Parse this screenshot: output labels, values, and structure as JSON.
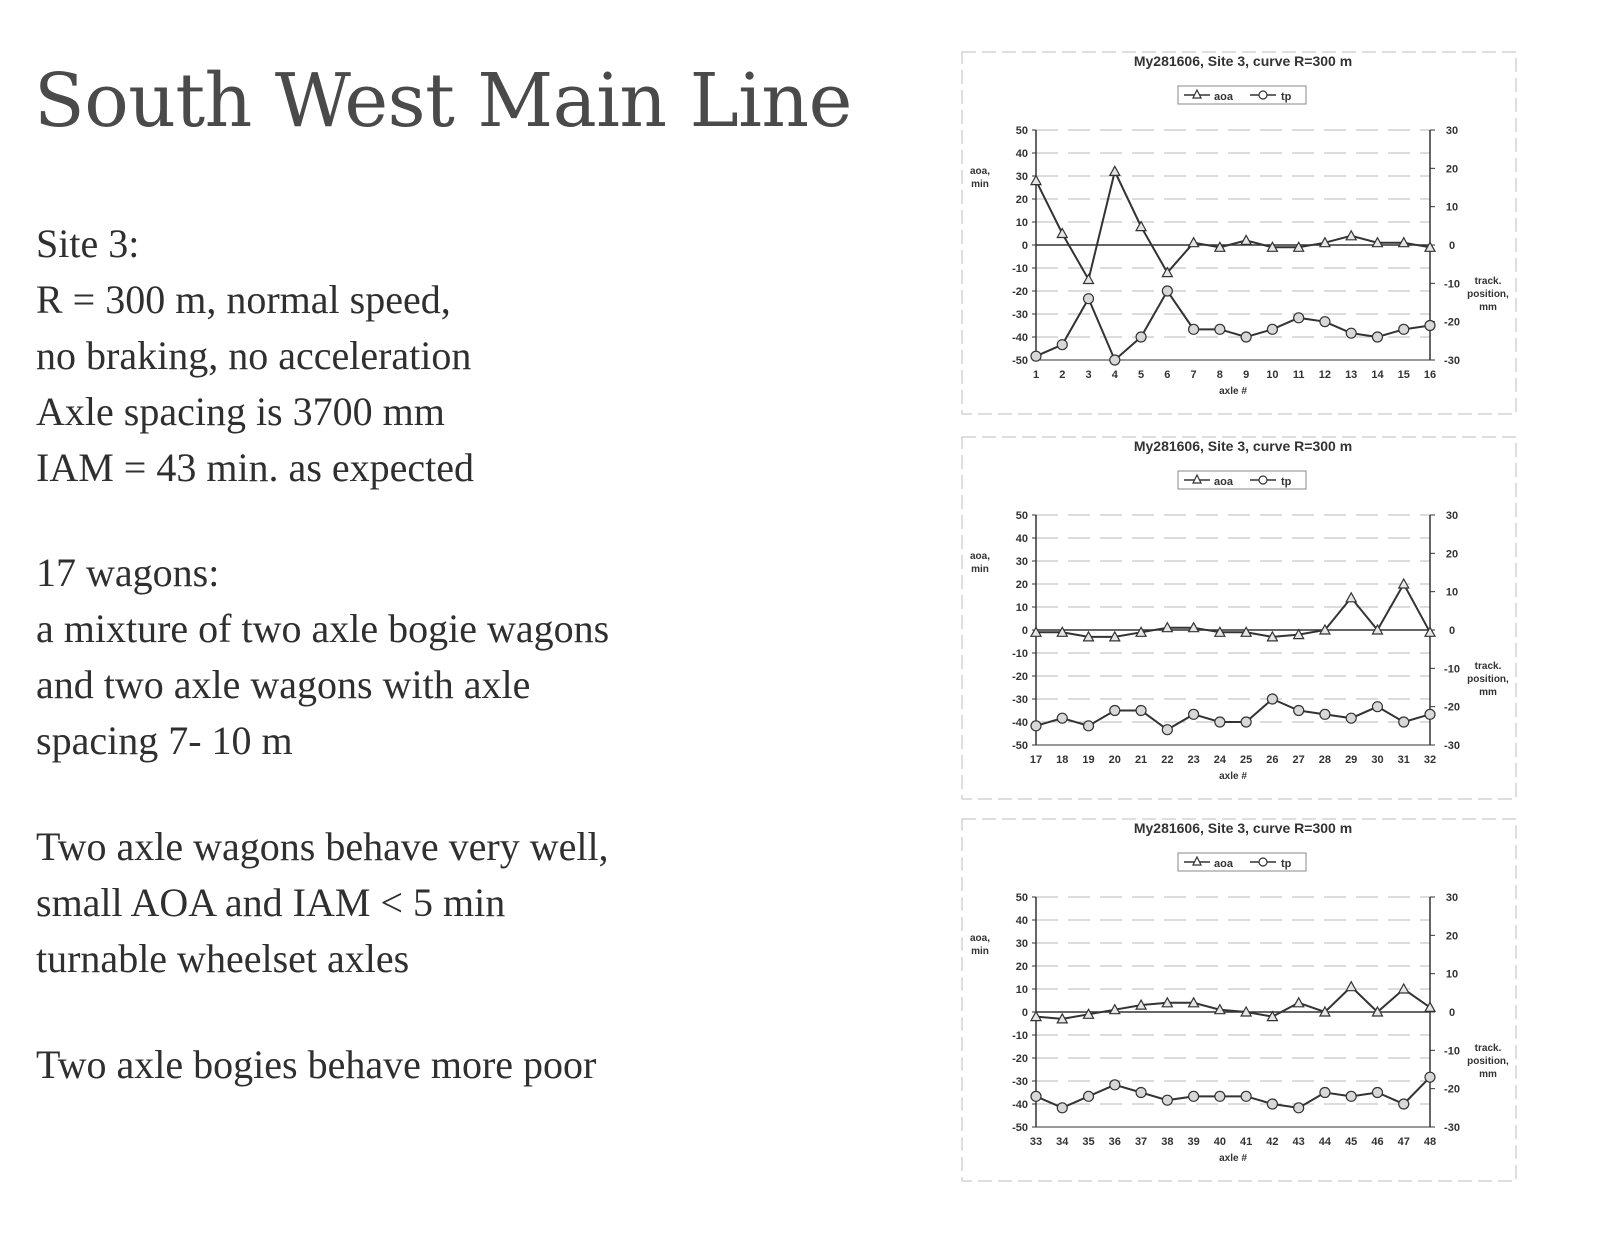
{
  "slide": {
    "title": "South West Main Line",
    "block1": [
      "Site 3:",
      "R = 300 m, normal speed,",
      "no braking, no acceleration",
      "Axle spacing is 3700 mm",
      "IAM = 43 min. as expected"
    ],
    "block2": [
      "17 wagons:",
      "a mixture of two axle bogie wagons",
      "and two axle wagons with axle",
      "spacing 7- 10 m"
    ],
    "block3": [
      "Two axle wagons behave very well,",
      "small AOA and IAM < 5 min",
      "turnable wheelset axles"
    ],
    "block4": [
      "Two axle bogies behave more  poor"
    ]
  },
  "chart_data": [
    {
      "type": "line",
      "title": "My281606, Site 3, curve R=300 m",
      "legend": [
        "aoa",
        "tp"
      ],
      "xlabel": "axle #",
      "ylabel": "aoa,\nmin",
      "y2label": "track.\nposition,\nmm",
      "ylim": [
        -50,
        50
      ],
      "y2lim": [
        -30,
        30
      ],
      "categories": [
        "1",
        "2",
        "3",
        "4",
        "5",
        "6",
        "7",
        "8",
        "9",
        "10",
        "11",
        "12",
        "13",
        "14",
        "15",
        "16"
      ],
      "series": [
        {
          "name": "aoa",
          "axis": "left",
          "marker": "triangle",
          "values": [
            28,
            5,
            -15,
            32,
            8,
            -12,
            1,
            -1,
            2,
            -1,
            -1,
            1,
            4,
            1,
            1,
            -1
          ]
        },
        {
          "name": "tp",
          "axis": "right",
          "marker": "circle",
          "values": [
            -29,
            -26,
            -14,
            -30,
            -24,
            -12,
            -22,
            -22,
            -24,
            -22,
            -19,
            -20,
            -23,
            -24,
            -22,
            -21
          ]
        }
      ]
    },
    {
      "type": "line",
      "title": "My281606, Site 3, curve R=300 m",
      "legend": [
        "aoa",
        "tp"
      ],
      "xlabel": "axle #",
      "ylabel": "aoa,\nmin",
      "y2label": "track.\nposition,\nmm",
      "ylim": [
        -50,
        50
      ],
      "y2lim": [
        -30,
        30
      ],
      "categories": [
        "17",
        "18",
        "19",
        "20",
        "21",
        "22",
        "23",
        "24",
        "25",
        "26",
        "27",
        "28",
        "29",
        "30",
        "31",
        "32"
      ],
      "series": [
        {
          "name": "aoa",
          "axis": "left",
          "marker": "triangle",
          "values": [
            -1,
            -1,
            -3,
            -3,
            -1,
            1,
            1,
            -1,
            -1,
            -3,
            -2,
            0,
            14,
            0,
            20,
            -1
          ]
        },
        {
          "name": "tp",
          "axis": "right",
          "marker": "circle",
          "values": [
            -25,
            -23,
            -25,
            -21,
            -21,
            -26,
            -22,
            -24,
            -24,
            -18,
            -21,
            -22,
            -23,
            -20,
            -24,
            -22
          ]
        }
      ]
    },
    {
      "type": "line",
      "title": "My281606, Site 3, curve R=300 m",
      "legend": [
        "aoa",
        "tp"
      ],
      "xlabel": "axle #",
      "ylabel": "aoa,\nmin",
      "y2label": "track.\nposition,\nmm",
      "ylim": [
        -50,
        50
      ],
      "y2lim": [
        -30,
        30
      ],
      "categories": [
        "33",
        "34",
        "35",
        "36",
        "37",
        "38",
        "39",
        "40",
        "41",
        "42",
        "43",
        "44",
        "45",
        "46",
        "47",
        "48"
      ],
      "series": [
        {
          "name": "aoa",
          "axis": "left",
          "marker": "triangle",
          "values": [
            -2,
            -3,
            -1,
            1,
            3,
            4,
            4,
            1,
            0,
            -2,
            4,
            0,
            11,
            0,
            10,
            2
          ]
        },
        {
          "name": "tp",
          "axis": "right",
          "marker": "circle",
          "values": [
            -22,
            -25,
            -22,
            -19,
            -21,
            -23,
            -22,
            -22,
            -22,
            -24,
            -25,
            -21,
            -22,
            -21,
            -24,
            -17
          ]
        }
      ]
    }
  ]
}
